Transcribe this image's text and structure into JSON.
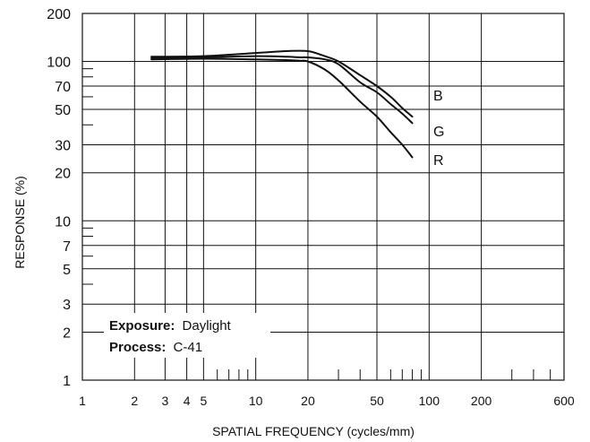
{
  "chart_data": {
    "type": "line",
    "title": "",
    "xlabel": "SPATIAL FREQUENCY (cycles/mm)",
    "ylabel": "RESPONSE (%)",
    "x_scale": "log",
    "y_scale": "log",
    "xlim": [
      1,
      600
    ],
    "ylim": [
      1,
      200
    ],
    "grid": true,
    "x_ticks": [
      1,
      2,
      3,
      4,
      5,
      10,
      20,
      50,
      100,
      200,
      600
    ],
    "y_ticks": [
      1,
      2,
      3,
      5,
      7,
      10,
      20,
      30,
      50,
      70,
      100,
      200
    ],
    "legend": {
      "exposure_label": "Exposure:",
      "exposure_value": "Daylight",
      "process_label": "Process:",
      "process_value": "C-41"
    },
    "series": [
      {
        "name": "B",
        "x": [
          2.5,
          5,
          10,
          15,
          20,
          25,
          30,
          40,
          50,
          60,
          70,
          80
        ],
        "y": [
          107,
          108,
          113,
          116,
          116,
          108,
          100,
          82,
          70,
          60,
          51,
          45
        ]
      },
      {
        "name": "G",
        "x": [
          2.5,
          5,
          10,
          15,
          18,
          20,
          25,
          30,
          40,
          50,
          60,
          70,
          80
        ],
        "y": [
          105,
          106,
          108,
          107,
          106,
          106,
          103,
          96,
          74,
          64,
          54,
          47,
          41
        ]
      },
      {
        "name": "R",
        "x": [
          2.5,
          5,
          10,
          15,
          18,
          20,
          25,
          30,
          40,
          50,
          60,
          70,
          80
        ],
        "y": [
          103,
          104,
          103,
          102,
          101,
          100,
          89,
          76,
          56,
          45,
          36,
          30,
          25
        ]
      }
    ]
  }
}
